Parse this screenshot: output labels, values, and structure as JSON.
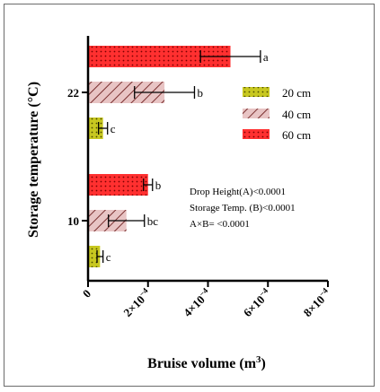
{
  "chart_data": {
    "type": "bar",
    "orientation": "horizontal",
    "categories": [
      "10",
      "22"
    ],
    "xlabel": "Bruise volume (m",
    "xlabel_sup": "3",
    "xlabel_close": ")",
    "ylabel": "Storage temperature (°C)",
    "xlim": [
      0,
      0.0008
    ],
    "xticks": [
      0,
      0.0002,
      0.0004,
      0.0006,
      0.0008
    ],
    "xtick_labels": [
      {
        "base": "0",
        "exp": ""
      },
      {
        "base": "2×10",
        "exp": "−4"
      },
      {
        "base": "4×10",
        "exp": "−4"
      },
      {
        "base": "6×10",
        "exp": "−4"
      },
      {
        "base": "8×10",
        "exp": "−4"
      }
    ],
    "series": [
      {
        "name": "20 cm",
        "color": "#c8c820",
        "pattern": "dots",
        "values": [
          4e-05,
          5e-05
        ],
        "errors": [
          1e-05,
          1.5e-05
        ],
        "letters": [
          "c",
          "c"
        ]
      },
      {
        "name": "40 cm",
        "color": "#e8c4c4",
        "pattern": "hatch",
        "values": [
          0.000128,
          0.000255
        ],
        "errors": [
          6e-05,
          0.0001
        ],
        "letters": [
          "bc",
          "b"
        ]
      },
      {
        "name": "60 cm",
        "color": "#ff3030",
        "pattern": "dots",
        "values": [
          0.0002,
          0.000475
        ],
        "errors": [
          1.5e-05,
          0.0001
        ],
        "letters": [
          "b",
          "a"
        ]
      }
    ],
    "annotations": [
      "Drop Height(A)<0.0001",
      "Storage Temp. (B)<0.0001",
      "A×B= <0.0001"
    ],
    "legend_position": "right-middle"
  }
}
